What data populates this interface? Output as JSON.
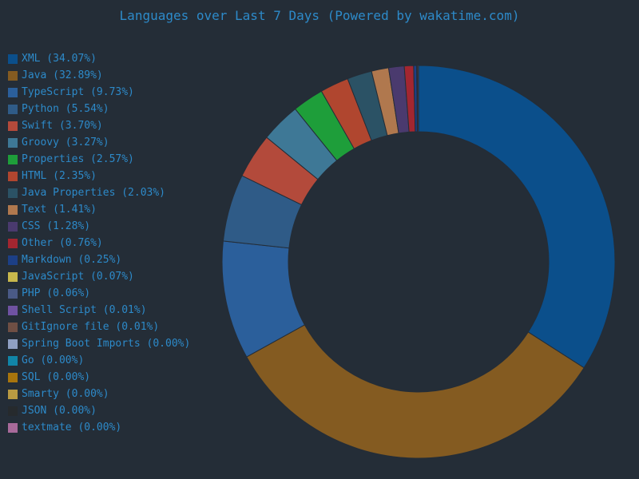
{
  "chart_data": {
    "type": "pie",
    "title": "Languages over Last 7 Days (Powered by wakatime.com)",
    "legend_position": "left",
    "categories": [
      "XML",
      "Java",
      "TypeScript",
      "Python",
      "Swift",
      "Groovy",
      "Properties",
      "HTML",
      "Java Properties",
      "Text",
      "CSS",
      "Other",
      "Markdown",
      "JavaScript",
      "PHP",
      "Shell Script",
      "GitIgnore file",
      "Spring Boot Imports",
      "Go",
      "SQL",
      "Smarty",
      "JSON",
      "textmate"
    ],
    "values": [
      34.07,
      32.89,
      9.73,
      5.54,
      3.7,
      3.27,
      2.57,
      2.35,
      2.03,
      1.41,
      1.28,
      0.76,
      0.25,
      0.07,
      0.06,
      0.01,
      0.01,
      0.0,
      0.0,
      0.0,
      0.0,
      0.0,
      0.0
    ],
    "labels": [
      "XML (34.07%)",
      "Java (32.89%)",
      "TypeScript (9.73%)",
      "Python (5.54%)",
      "Swift (3.70%)",
      "Groovy (3.27%)",
      "Properties (2.57%)",
      "HTML (2.35%)",
      "Java Properties (2.03%)",
      "Text (1.41%)",
      "CSS (1.28%)",
      "Other (0.76%)",
      "Markdown (0.25%)",
      "JavaScript (0.07%)",
      "PHP (0.06%)",
      "Shell Script (0.01%)",
      "GitIgnore file (0.01%)",
      "Spring Boot Imports (0.00%)",
      "Go (0.00%)",
      "SQL (0.00%)",
      "Smarty (0.00%)",
      "JSON (0.00%)",
      "textmate (0.00%)"
    ],
    "colors": [
      "#0b4f8b",
      "#845b21",
      "#2b5f9b",
      "#2f5b87",
      "#b34a3b",
      "#3e7896",
      "#1e9e3a",
      "#b0462f",
      "#2b5265",
      "#b0784e",
      "#4a3a6e",
      "#a32630",
      "#1c3f86",
      "#c8b84c",
      "#4a5a86",
      "#6f52a2",
      "#6f4f44",
      "#8fa0c3",
      "#1185a8",
      "#a8750d",
      "#b89a42",
      "#262a2d",
      "#a86a9a"
    ],
    "background_color": "#242d37",
    "text_color": "#2d8ac9"
  }
}
